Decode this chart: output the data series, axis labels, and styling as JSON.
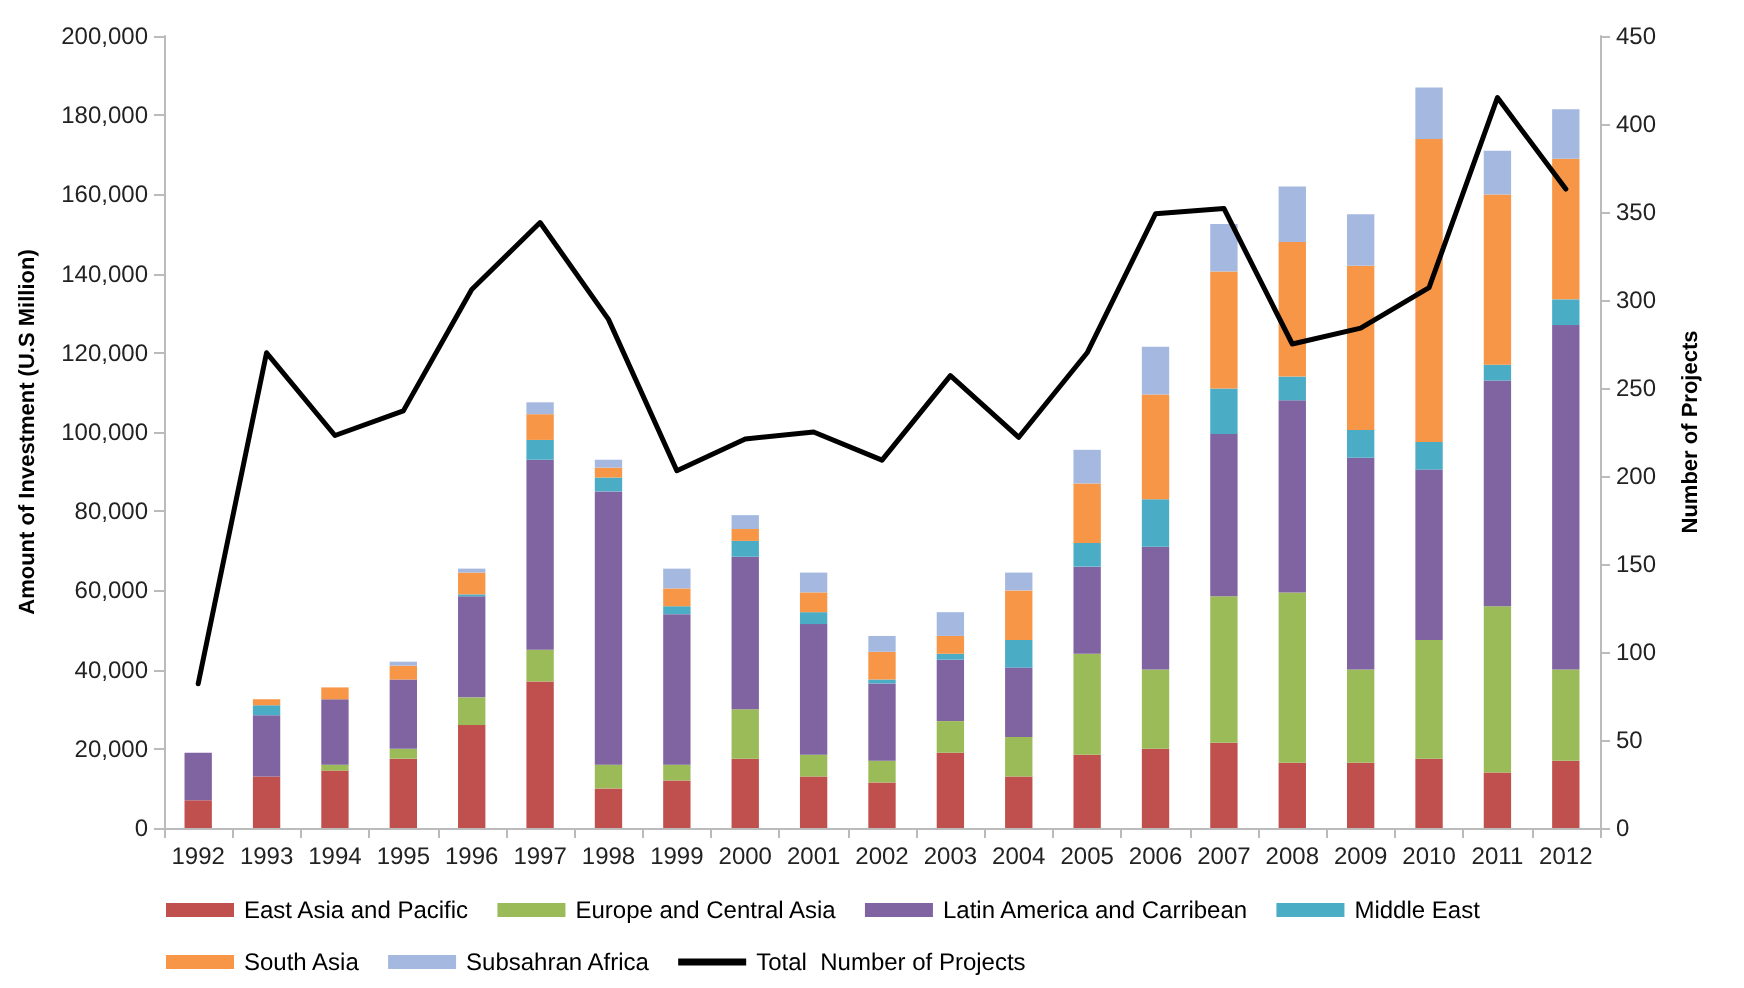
{
  "chart_data": {
    "type": "bar",
    "stacked": true,
    "xlabel": null,
    "ylabel": "Amount of Investment (U.S Million)",
    "y2label": "Number of Projects",
    "categories": [
      "1992",
      "1993",
      "1994",
      "1995",
      "1996",
      "1997",
      "1998",
      "1999",
      "2000",
      "2001",
      "2002",
      "2003",
      "2004",
      "2005",
      "2006",
      "2007",
      "2008",
      "2009",
      "2010",
      "2011",
      "2012"
    ],
    "series": [
      {
        "name": "East Asia and Pacific",
        "color": "#c0504d",
        "values": [
          7000,
          13000,
          14500,
          17500,
          26000,
          37000,
          10000,
          12000,
          17500,
          13000,
          11500,
          19000,
          13000,
          18500,
          20000,
          21500,
          16500,
          16500,
          17500,
          14000,
          17000
        ]
      },
      {
        "name": "Europe and Central Asia",
        "color": "#9bbb59",
        "values": [
          0,
          0,
          1500,
          2500,
          7000,
          8000,
          6000,
          4000,
          12500,
          5500,
          5500,
          8000,
          10000,
          25500,
          20000,
          37000,
          43000,
          23500,
          30000,
          42000,
          23000
        ]
      },
      {
        "name": "Latin America and Carribean",
        "color": "#8064a2",
        "values": [
          12000,
          15500,
          16500,
          17500,
          25500,
          48000,
          69000,
          38000,
          38500,
          33000,
          19500,
          15500,
          17500,
          22000,
          31000,
          41000,
          48500,
          53500,
          43000,
          57000,
          87000
        ]
      },
      {
        "name": "Middle East",
        "color": "#4bacc6",
        "values": [
          0,
          2500,
          0,
          0,
          500,
          5000,
          3500,
          2000,
          4000,
          3000,
          1000,
          1500,
          7000,
          6000,
          12000,
          11500,
          6000,
          7000,
          7000,
          4000,
          6500
        ]
      },
      {
        "name": "South Asia",
        "color": "#f79646",
        "values": [
          0,
          1500,
          3000,
          3500,
          5500,
          6500,
          2500,
          4500,
          3000,
          5000,
          7000,
          4500,
          12500,
          15000,
          26500,
          29500,
          34000,
          41500,
          76500,
          43000,
          35500
        ]
      },
      {
        "name": "Subsahran Africa",
        "color": "#a5b9e0",
        "values": [
          0,
          null,
          0,
          1000,
          1000,
          3000,
          2000,
          5000,
          3500,
          5000,
          4000,
          6000,
          4500,
          8500,
          12000,
          12000,
          14000,
          13000,
          13000,
          11000,
          12500
        ]
      },
      {
        "name": "Total  Number of Projects",
        "type": "line",
        "axis": "y2",
        "color": "#000000",
        "marker": "none",
        "values": [
          82,
          270,
          223,
          237,
          306,
          344,
          289,
          203,
          221,
          225,
          209,
          257,
          222,
          270,
          349,
          352,
          275,
          284,
          307,
          415,
          363
        ]
      }
    ],
    "ylim": [
      0,
      200000
    ],
    "yticks": [
      {
        "value": 0,
        "label": "0"
      },
      {
        "value": 20000,
        "label": "20,000"
      },
      {
        "value": 40000,
        "label": "40,000"
      },
      {
        "value": 60000,
        "label": "60,000"
      },
      {
        "value": 80000,
        "label": "80,000"
      },
      {
        "value": 100000,
        "label": "100,000"
      },
      {
        "value": 120000,
        "label": "120,000"
      },
      {
        "value": 140000,
        "label": "140,000"
      },
      {
        "value": 160000,
        "label": "160,000"
      },
      {
        "value": 180000,
        "label": "180,000"
      },
      {
        "value": 200000,
        "label": "200,000"
      }
    ],
    "y2lim": [
      0,
      450
    ],
    "y2ticks": [
      0,
      50,
      100,
      150,
      200,
      250,
      300,
      350,
      400,
      450
    ],
    "grid": false,
    "legend": "bottom"
  }
}
